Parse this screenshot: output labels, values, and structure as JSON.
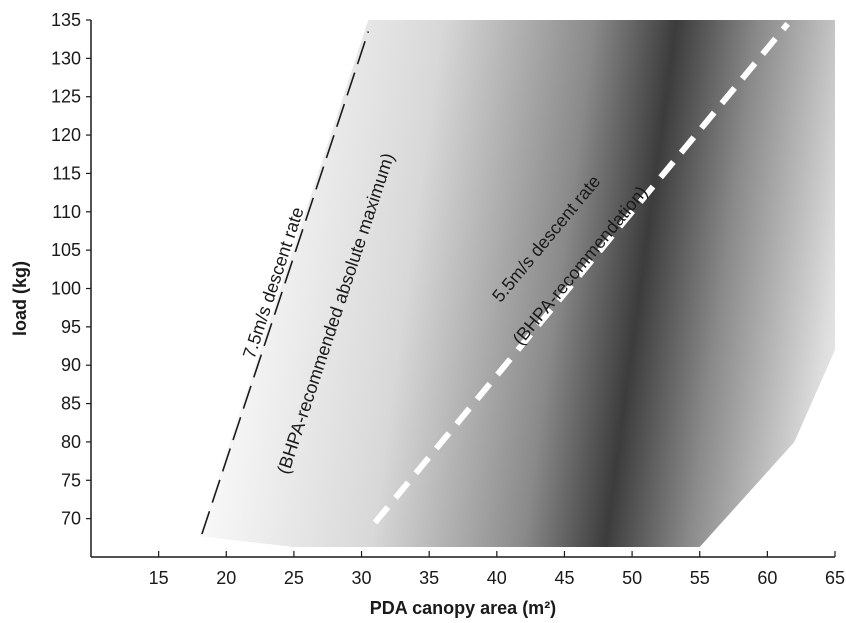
{
  "chart_data": {
    "type": "area",
    "xlabel": "PDA canopy area (m²)",
    "ylabel": "load (kg)",
    "xlim": [
      10,
      65
    ],
    "ylim": [
      65,
      135
    ],
    "xticks": [
      15,
      20,
      25,
      30,
      35,
      40,
      45,
      50,
      55,
      60,
      65
    ],
    "yticks": [
      70,
      75,
      80,
      85,
      90,
      95,
      100,
      105,
      110,
      115,
      120,
      125,
      130,
      135
    ],
    "grid": false,
    "shaded_region": {
      "polygon": [
        [
          18,
          67.7
        ],
        [
          30.5,
          135
        ],
        [
          65,
          135
        ],
        [
          65,
          92
        ],
        [
          62,
          80
        ],
        [
          55,
          66.3
        ],
        [
          25,
          66.3
        ]
      ],
      "darkest_along": "5.5m/s descent rate line"
    },
    "series": [
      {
        "style": "dashed-thin-black",
        "x": [
          18.2,
          30.5
        ],
        "y": [
          68,
          133.5
        ],
        "annotation": [
          "7.5m/s descent rate",
          "(BHPA-recommended absolute maximum)"
        ]
      },
      {
        "style": "dashed-thick-white",
        "x": [
          31,
          61.5
        ],
        "y": [
          69.5,
          134.5
        ],
        "annotation": [
          "5.5m/s descent rate",
          "(BHPA-recommendation)"
        ]
      }
    ]
  },
  "colors": {
    "background": "#ffffff",
    "axis": "#1a1a1a",
    "shade_dark": "#3c3c3c",
    "shade_light": "#ffffff",
    "line_75": "#1a1a1a",
    "line_55": "#ffffff"
  }
}
